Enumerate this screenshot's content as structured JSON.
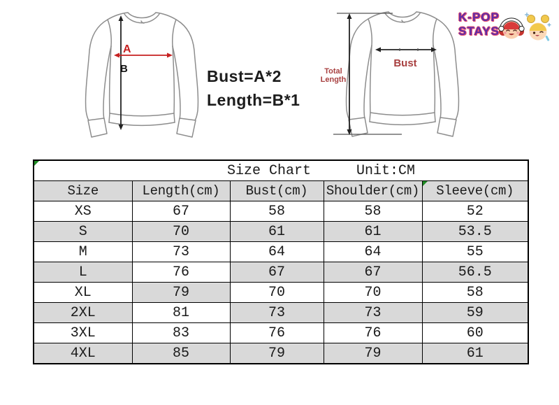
{
  "theme": {
    "shade": "#d9d9d9",
    "table_border": "#000000",
    "text": "#1a1a1a",
    "flag_green": "#1f8b24",
    "logo_purple": "#5b2da8",
    "logo_outline": "#e8506e",
    "arrow_red": "#c62121",
    "arrow_black": "#222222",
    "label_dark_red": "#a84040",
    "sweater_line": "#8d8d8d"
  },
  "left_diagram": {
    "width_label": "A",
    "length_label": "B",
    "formulas": [
      "Bust=A*2",
      "Length=B*1"
    ]
  },
  "right_diagram": {
    "total_length_line1": "Total",
    "total_length_line2": "Length",
    "bust_label": "Bust"
  },
  "logo": {
    "line1": "K-POP",
    "line2": "STAYS"
  },
  "size_table": {
    "title": "Size Chart",
    "unit": "Unit:CM",
    "columns": [
      "Size",
      "Length(cm)",
      "Bust(cm)",
      "Shoulder(cm)",
      "Sleeve(cm)"
    ],
    "column_keys": [
      "size",
      "length",
      "bust",
      "shoulder",
      "sleeve"
    ],
    "rows": [
      {
        "size": "XS",
        "length": "67",
        "bust": "58",
        "shoulder": "58",
        "sleeve": "52",
        "row_shaded": false
      },
      {
        "size": "S",
        "length": "70",
        "bust": "61",
        "shoulder": "61",
        "sleeve": "53.5",
        "row_shaded": true
      },
      {
        "size": "M",
        "length": "73",
        "bust": "64",
        "shoulder": "64",
        "sleeve": "55",
        "row_shaded": false
      },
      {
        "size": "L",
        "length": "76",
        "bust": "67",
        "shoulder": "67",
        "sleeve": "56.5",
        "row_shaded": true,
        "length_cell_shaded": false
      },
      {
        "size": "XL",
        "length": "79",
        "bust": "70",
        "shoulder": "70",
        "sleeve": "58",
        "row_shaded": false,
        "length_cell_shaded": true
      },
      {
        "size": "2XL",
        "length": "81",
        "bust": "73",
        "shoulder": "73",
        "sleeve": "59",
        "row_shaded": true,
        "length_cell_shaded": false
      },
      {
        "size": "3XL",
        "length": "83",
        "bust": "76",
        "shoulder": "76",
        "sleeve": "60",
        "row_shaded": false
      },
      {
        "size": "4XL",
        "length": "85",
        "bust": "79",
        "shoulder": "79",
        "sleeve": "61",
        "row_shaded": true
      }
    ]
  }
}
